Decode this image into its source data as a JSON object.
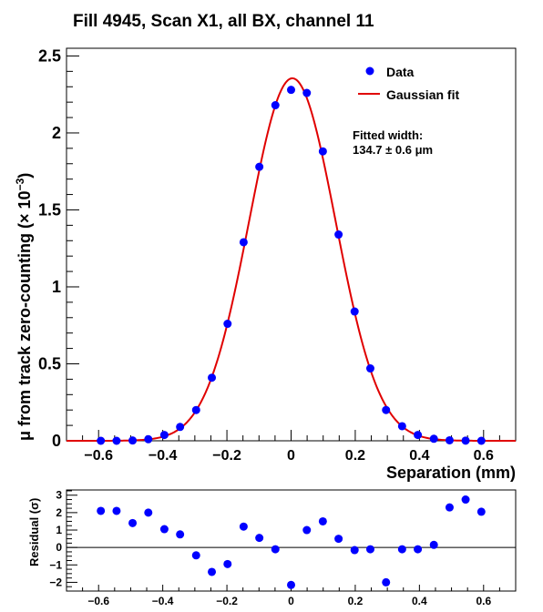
{
  "chart_data": [
    {
      "type": "scatter",
      "title": "Fill 4945, Scan X1, all BX, channel 11",
      "xlabel": "Separation (mm)",
      "ylabel": "μ from track zero-counting (× 10⁻³)",
      "ylabel_main": "μ from track zero-counting (",
      "ylabel_factor": "× 10",
      "ylabel_exp": "−3",
      "ylabel_close": ")",
      "xlim": [
        -0.7,
        0.7
      ],
      "ylim": [
        0,
        2.55
      ],
      "xticks": [
        -0.6,
        -0.4,
        -0.2,
        0,
        0.2,
        0.4,
        0.6
      ],
      "xtick_labels": [
        "−0.6",
        "−0.4",
        "−0.2",
        "0",
        "0.2",
        "0.4",
        "0.6"
      ],
      "yticks": [
        0,
        0.5,
        1,
        1.5,
        2,
        2.5
      ],
      "ytick_labels": [
        "0",
        "0.5",
        "1",
        "1.5",
        "2",
        "2.5"
      ],
      "grid": false,
      "legend_position": "top-right",
      "series": [
        {
          "name": "Data",
          "color": "#0000ff",
          "marker": "circle",
          "x": [
            -0.593,
            -0.544,
            -0.494,
            -0.445,
            -0.395,
            -0.346,
            -0.296,
            -0.247,
            -0.198,
            -0.148,
            -0.099,
            -0.049,
            0.0,
            0.049,
            0.099,
            0.148,
            0.198,
            0.247,
            0.296,
            0.346,
            0.395,
            0.445,
            0.494,
            0.544,
            0.593
          ],
          "y": [
            0.0,
            0.0,
            0.002,
            0.01,
            0.038,
            0.09,
            0.2,
            0.41,
            0.76,
            1.29,
            1.78,
            2.18,
            2.28,
            2.26,
            1.88,
            1.34,
            0.84,
            0.47,
            0.2,
            0.095,
            0.038,
            0.013,
            0.003,
            0.001,
            0.0
          ],
          "yerr": [
            0.005,
            0.005,
            0.005,
            0.005,
            0.006,
            0.008,
            0.01,
            0.012,
            0.015,
            0.018,
            0.02,
            0.022,
            0.025,
            0.023,
            0.021,
            0.018,
            0.015,
            0.012,
            0.01,
            0.008,
            0.006,
            0.005,
            0.005,
            0.005,
            0.005
          ]
        },
        {
          "name": "Gaussian fit",
          "color": "#e00000",
          "type": "line",
          "function": "gaussian",
          "amplitude": 2.355,
          "mean": 0.004,
          "sigma": 0.1347,
          "x_range": [
            -0.7,
            0.7
          ]
        }
      ],
      "annotation": {
        "line1": "Fitted width:",
        "line2": "134.7 ± 0.6 μm"
      }
    },
    {
      "type": "scatter",
      "ylabel": "Residual (σ)",
      "xlim": [
        -0.7,
        0.7
      ],
      "ylim": [
        -2.5,
        3.3
      ],
      "xticks": [
        -0.6,
        -0.4,
        -0.2,
        0,
        0.2,
        0.4,
        0.6
      ],
      "xtick_labels": [
        "−0.6",
        "−0.4",
        "−0.2",
        "0",
        "0.2",
        "0.4",
        "0.6"
      ],
      "yticks": [
        -2,
        -1,
        0,
        1,
        2,
        3
      ],
      "ytick_labels": [
        "−2",
        "−1",
        "0",
        "1",
        "2",
        "3"
      ],
      "reference_line": 0,
      "series": [
        {
          "color": "#0000ff",
          "marker": "circle",
          "x": [
            -0.593,
            -0.544,
            -0.494,
            -0.445,
            -0.395,
            -0.346,
            -0.296,
            -0.247,
            -0.198,
            -0.148,
            -0.099,
            -0.049,
            0.0,
            0.049,
            0.099,
            0.148,
            0.198,
            0.247,
            0.296,
            0.346,
            0.395,
            0.445,
            0.494,
            0.544,
            0.593
          ],
          "y": [
            2.1,
            2.1,
            1.4,
            2.0,
            1.05,
            0.75,
            -0.45,
            -1.4,
            -0.95,
            1.2,
            0.55,
            -0.1,
            -2.15,
            1.0,
            1.5,
            0.5,
            -0.15,
            -0.1,
            -2.0,
            -0.1,
            -0.1,
            0.15,
            2.3,
            2.75,
            2.05
          ]
        }
      ]
    }
  ]
}
